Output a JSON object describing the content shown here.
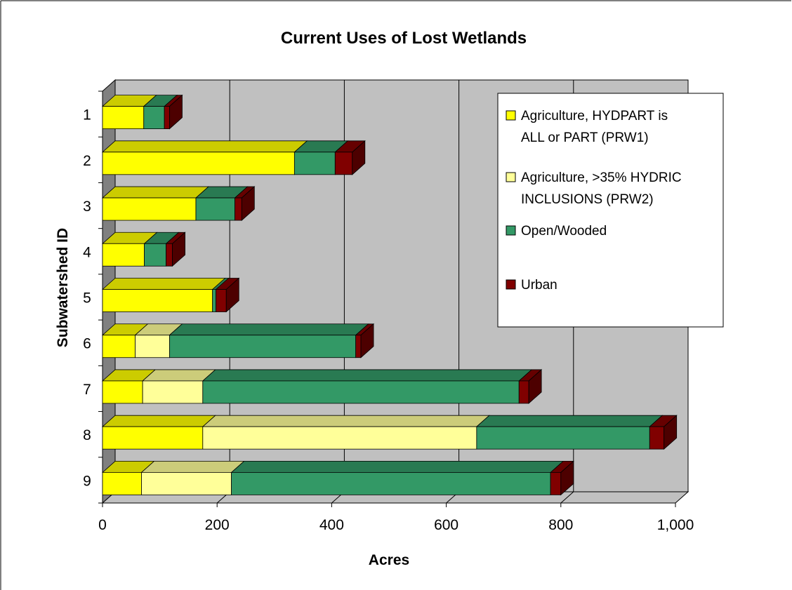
{
  "chart_data": {
    "type": "bar",
    "orientation": "horizontal",
    "stacked": true,
    "three_d": true,
    "title": "Current Uses of Lost Wetlands",
    "xlabel": "Acres",
    "ylabel": "Subwatershed ID",
    "xlim": [
      0,
      1000
    ],
    "x_ticks": [
      "0",
      "200",
      "400",
      "600",
      "800",
      "1,000"
    ],
    "categories": [
      "1",
      "2",
      "3",
      "4",
      "5",
      "6",
      "7",
      "8",
      "9"
    ],
    "grid": true,
    "legend_position": "right",
    "series": [
      {
        "name": "Agriculture, HYDPART is ALL or PART (PRW1)",
        "legend_lines": [
          "Agriculture, HYDPART is",
          "ALL or PART (PRW1)"
        ],
        "color": "#FFFF00",
        "values": [
          72,
          335,
          163,
          73,
          192,
          57,
          70,
          175,
          68
        ]
      },
      {
        "name": "Agriculture, >35% HYDRIC INCLUSIONS (PRW2)",
        "legend_lines": [
          "Agriculture, >35% HYDRIC",
          "INCLUSIONS (PRW2)"
        ],
        "color": "#FFFF99",
        "values": [
          0,
          0,
          0,
          0,
          0,
          60,
          105,
          478,
          157
        ]
      },
      {
        "name": "Open/Wooded",
        "legend_lines": [
          "Open/Wooded"
        ],
        "color": "#339966",
        "values": [
          36,
          71,
          68,
          38,
          6,
          325,
          552,
          302,
          557
        ]
      },
      {
        "name": "Urban",
        "legend_lines": [
          "Urban"
        ],
        "color": "#800000",
        "values": [
          9,
          30,
          12,
          11,
          18,
          9,
          17,
          25,
          18
        ]
      }
    ]
  },
  "colors": {
    "plot_back": "#C0C0C0",
    "side_wall": "#808080",
    "floor": "#C0C0C0"
  }
}
